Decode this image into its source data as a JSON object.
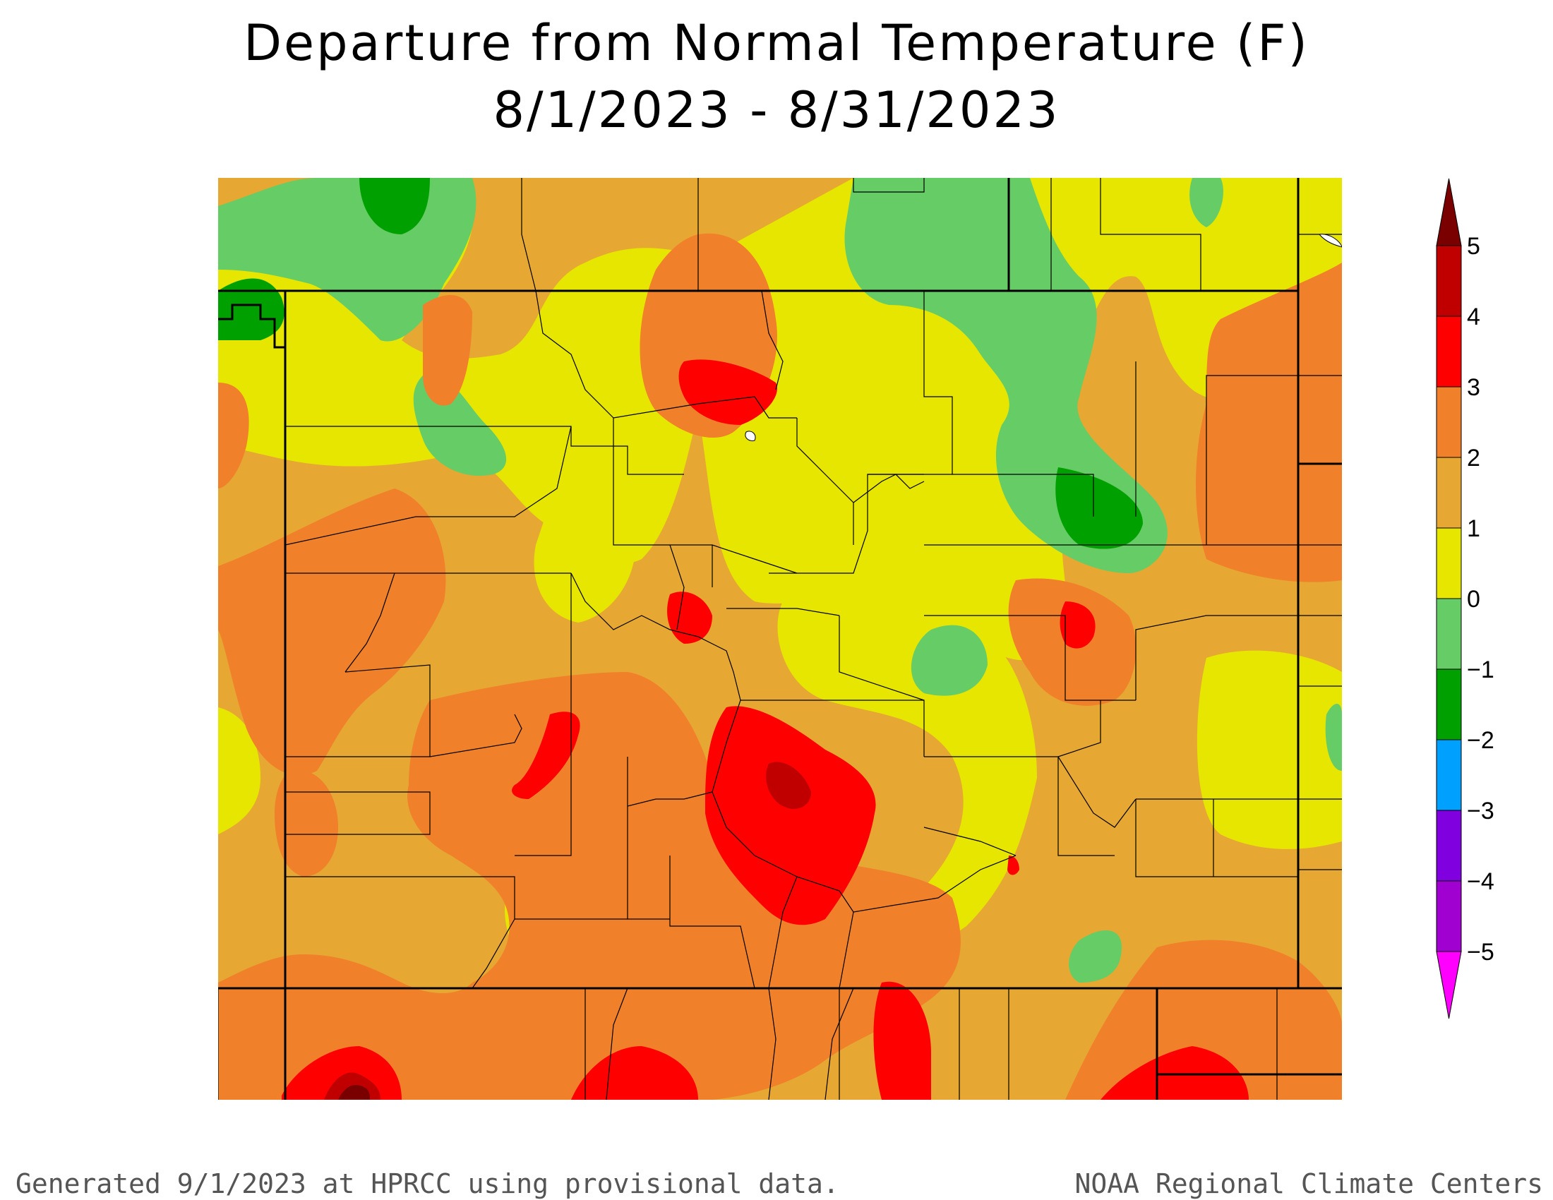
{
  "title_line1": "Departure from Normal Temperature (F)",
  "title_line2": "8/1/2023 - 8/31/2023",
  "footer_left": "Generated 9/1/2023 at HPRCC using provisional data.",
  "footer_right": "NOAA Regional Climate Centers",
  "legend": {
    "labels": [
      "5",
      "4",
      "3",
      "2",
      "1",
      "0",
      "−1",
      "−2",
      "−3",
      "−4",
      "−5"
    ],
    "colors": [
      "#7a0000",
      "#c00000",
      "#ff0000",
      "#f0802a",
      "#e6a832",
      "#e6e600",
      "#66cc66",
      "#00a000",
      "#00a0ff",
      "#8000e0",
      "#a000d0"
    ],
    "top_arrow_color": "#7a0000",
    "bottom_arrow_color": "#ff00ff"
  },
  "map_colors": {
    "plus_3_4": "#ff0000",
    "plus_2_3": "#f0802a",
    "plus_1_2": "#e6a832",
    "zero_1": "#e6e600",
    "minus_1_0": "#66cc66",
    "minus_2_1": "#00a000",
    "plus_4_5": "#c00000",
    "above_5": "#7a0000"
  }
}
